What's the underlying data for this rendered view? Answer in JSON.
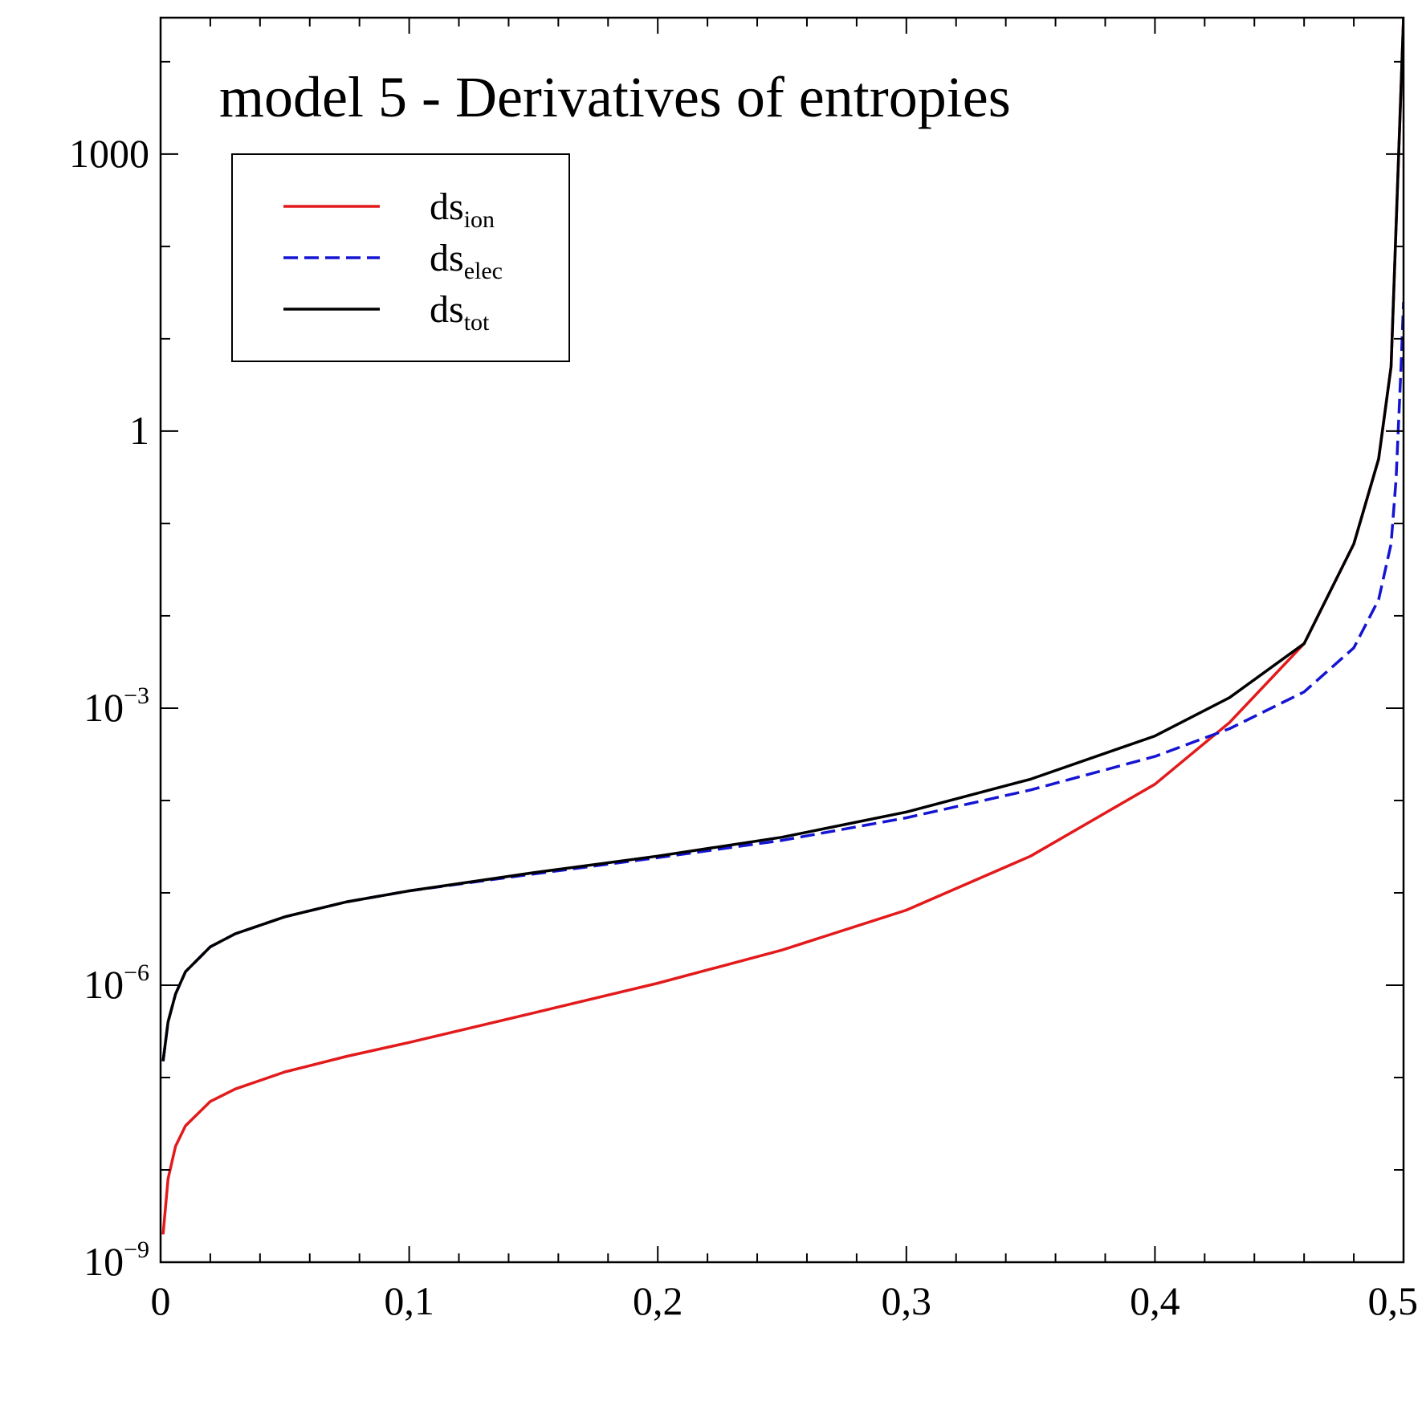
{
  "chart_data": {
    "type": "line",
    "title": "model 5 - Derivatives of entropies",
    "xlabel": "",
    "ylabel": "",
    "xlim": [
      0,
      0.5
    ],
    "ylim": [
      1e-09,
      30000
    ],
    "y_scale": "log",
    "grid": false,
    "legend_position": "top-left",
    "x_ticks": [
      {
        "value": 0,
        "label": "0"
      },
      {
        "value": 0.1,
        "label": "0,1"
      },
      {
        "value": 0.2,
        "label": "0,2"
      },
      {
        "value": 0.3,
        "label": "0,3"
      },
      {
        "value": 0.4,
        "label": "0,4"
      },
      {
        "value": 0.5,
        "label": "0,5"
      }
    ],
    "y_ticks": [
      {
        "value": 1e-09,
        "base": "10",
        "exponent": "−9",
        "label": ""
      },
      {
        "value": 1e-06,
        "base": "10",
        "exponent": "−6",
        "label": ""
      },
      {
        "value": 0.001,
        "base": "10",
        "exponent": "−3",
        "label": ""
      },
      {
        "value": 1,
        "base": "",
        "exponent": "",
        "label": "1"
      },
      {
        "value": 1000,
        "base": "",
        "exponent": "",
        "label": "1000"
      }
    ],
    "series": [
      {
        "name": "ds",
        "subscript": "ion",
        "color": "#e31a1c",
        "style": "solid",
        "x": [
          0.001,
          0.003,
          0.006,
          0.01,
          0.02,
          0.03,
          0.05,
          0.075,
          0.1,
          0.15,
          0.2,
          0.25,
          0.3,
          0.35,
          0.4,
          0.43,
          0.46,
          0.48,
          0.49,
          0.495,
          0.5
        ],
        "values": [
          2e-09,
          8e-09,
          1.8e-08,
          3e-08,
          5.5e-08,
          7.5e-08,
          1.15e-07,
          1.7e-07,
          2.4e-07,
          5e-07,
          1.05e-06,
          2.4e-06,
          6.5e-06,
          2.5e-05,
          0.00015,
          0.0007,
          0.005,
          0.06,
          0.5,
          5,
          30000
        ]
      },
      {
        "name": "ds",
        "subscript": "elec",
        "color": "#1414d2",
        "style": "dashed",
        "x": [
          0.001,
          0.003,
          0.006,
          0.01,
          0.02,
          0.03,
          0.05,
          0.075,
          0.1,
          0.15,
          0.2,
          0.25,
          0.3,
          0.35,
          0.4,
          0.43,
          0.46,
          0.48,
          0.49,
          0.495,
          0.497,
          0.499,
          0.5
        ],
        "values": [
          1.5e-07,
          4e-07,
          8e-07,
          1.4e-06,
          2.6e-06,
          3.6e-06,
          5.5e-06,
          8e-06,
          1.05e-05,
          1.6e-05,
          2.4e-05,
          3.7e-05,
          6.5e-05,
          0.00013,
          0.0003,
          0.0006,
          0.0015,
          0.0045,
          0.015,
          0.06,
          0.3,
          5,
          25
        ]
      },
      {
        "name": "ds",
        "subscript": "tot",
        "color": "#000000",
        "style": "solid",
        "x": [
          0.001,
          0.003,
          0.006,
          0.01,
          0.02,
          0.03,
          0.05,
          0.075,
          0.1,
          0.15,
          0.2,
          0.25,
          0.3,
          0.35,
          0.4,
          0.43,
          0.46,
          0.48,
          0.49,
          0.495,
          0.5
        ],
        "values": [
          1.5e-07,
          4e-07,
          8e-07,
          1.4e-06,
          2.6e-06,
          3.6e-06,
          5.5e-06,
          8e-06,
          1.05e-05,
          1.65e-05,
          2.5e-05,
          4e-05,
          7.5e-05,
          0.00017,
          0.0005,
          0.0013,
          0.005,
          0.06,
          0.5,
          5,
          30000
        ]
      }
    ]
  }
}
